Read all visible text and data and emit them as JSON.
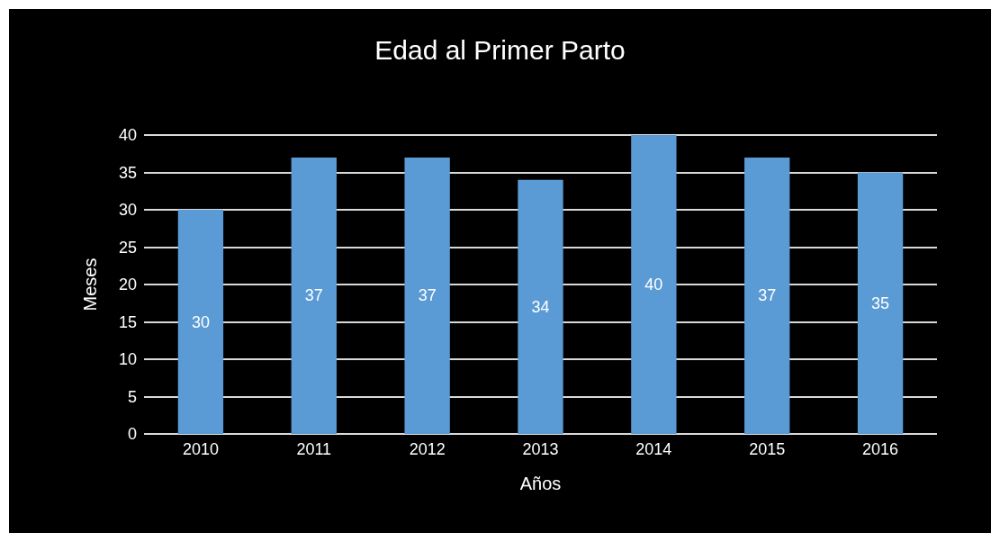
{
  "chart_data": {
    "type": "bar",
    "title": "Edad al Primer Parto",
    "xlabel": "Años",
    "ylabel": "Meses",
    "categories": [
      "2010",
      "2011",
      "2012",
      "2013",
      "2014",
      "2015",
      "2016"
    ],
    "values": [
      30,
      37,
      37,
      34,
      40,
      37,
      35
    ],
    "color": "#5b9bd5",
    "ylim": [
      0,
      40
    ],
    "yticks": [
      0,
      5,
      10,
      15,
      20,
      25,
      30,
      35,
      40
    ],
    "grid": true,
    "data_labels": true
  }
}
